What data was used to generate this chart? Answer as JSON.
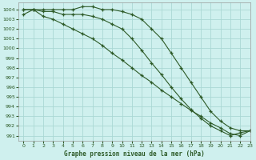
{
  "title": "Graphe pression niveau de la mer (hPa)",
  "bg_color": "#cff0ee",
  "grid_color": "#aad8d4",
  "line_color": "#2d5a27",
  "xlim": [
    -0.5,
    23
  ],
  "ylim": [
    990.5,
    1004.7
  ],
  "xticks": [
    0,
    1,
    2,
    3,
    4,
    5,
    6,
    7,
    8,
    9,
    10,
    11,
    12,
    13,
    14,
    15,
    16,
    17,
    18,
    19,
    20,
    21,
    22,
    23
  ],
  "yticks": [
    991,
    992,
    993,
    994,
    995,
    996,
    997,
    998,
    999,
    1000,
    1001,
    1002,
    1003,
    1004
  ],
  "series": [
    {
      "x": [
        0,
        1,
        2,
        3,
        4,
        5,
        6,
        7,
        8,
        9,
        10,
        11,
        12,
        13,
        14,
        15,
        16,
        17,
        18,
        19,
        20,
        21,
        22,
        23
      ],
      "y": [
        1004.0,
        1004.0,
        1004.0,
        1004.0,
        1004.0,
        1004.0,
        1004.3,
        1004.3,
        1004.0,
        1004.0,
        1003.8,
        1003.5,
        1003.0,
        1002.0,
        1001.0,
        999.5,
        998.0,
        996.5,
        995.0,
        993.5,
        992.5,
        991.8,
        991.5,
        991.5
      ]
    },
    {
      "x": [
        0,
        1,
        2,
        3,
        4,
        5,
        6,
        7,
        8,
        9,
        10,
        11,
        12,
        13,
        14,
        15,
        16,
        17,
        18,
        19,
        20,
        21,
        22,
        23
      ],
      "y": [
        1004.0,
        1004.0,
        1003.8,
        1003.8,
        1003.5,
        1003.5,
        1003.5,
        1003.3,
        1003.0,
        1002.5,
        1002.0,
        1001.0,
        999.8,
        998.5,
        997.3,
        996.0,
        994.8,
        993.7,
        992.8,
        992.0,
        991.5,
        991.0,
        991.3,
        991.5
      ]
    },
    {
      "x": [
        0,
        1,
        2,
        3,
        4,
        5,
        6,
        7,
        8,
        9,
        10,
        11,
        12,
        13,
        14,
        15,
        16,
        17,
        18,
        19,
        20,
        21,
        22,
        23
      ],
      "y": [
        1003.5,
        1004.0,
        1003.3,
        1003.0,
        1002.5,
        1002.0,
        1001.5,
        1001.0,
        1000.3,
        999.5,
        998.8,
        998.0,
        997.2,
        996.5,
        995.7,
        995.0,
        994.3,
        993.6,
        993.0,
        992.3,
        991.8,
        991.2,
        991.0,
        991.5
      ]
    }
  ]
}
